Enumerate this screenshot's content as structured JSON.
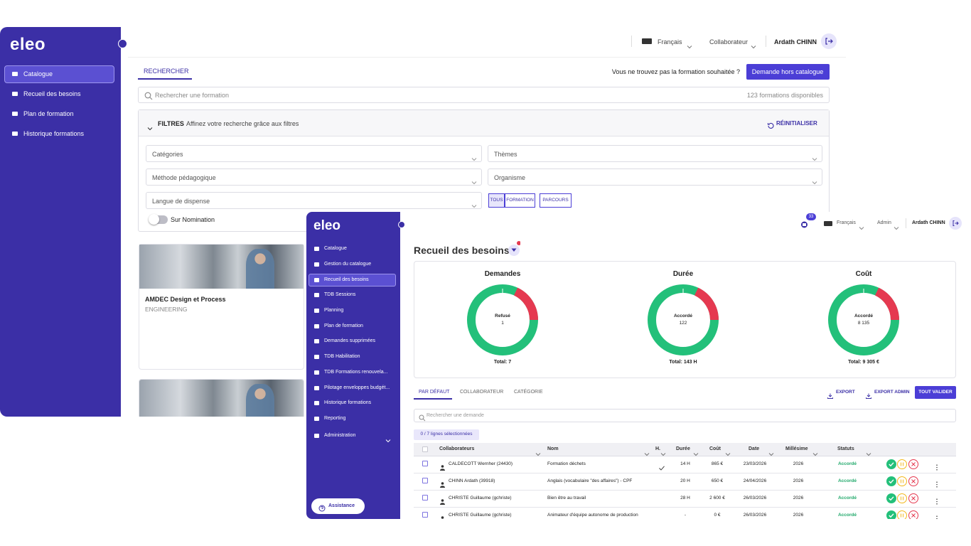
{
  "back_screen": {
    "logo": "eleo",
    "menu": [
      "Catalogue",
      "Recueil des besoins",
      "Plan de formation",
      "Historique formations"
    ],
    "header": {
      "language": "Français",
      "role": "Collaborateur",
      "user": "Ardath CHINN"
    },
    "tab": "RECHERCHER",
    "not_found_text": "Vous ne trouvez pas la formation souhaitée ?",
    "request_button": "Demande hors catalogue",
    "search_placeholder": "Rechercher une formation",
    "available_count": "123 formations disponibles",
    "filters": {
      "title": "FILTRES",
      "subtitle": "Affinez votre recherche grâce aux filtres",
      "reset": "RÉINITIALISER",
      "selects": [
        "Catégories",
        "Thèmes",
        "Méthode pédagogique",
        "Organisme",
        "Langue de dispense"
      ],
      "type_toggle": [
        "TOUS",
        "FORMATION",
        "PARCOURS"
      ],
      "nomination": "Sur Nomination"
    },
    "cards": [
      {
        "title": "AMDEC Design et Process",
        "category": "ENGINEERING"
      }
    ]
  },
  "front_screen": {
    "logo": "eleo",
    "menu": [
      "Catalogue",
      "Gestion du catalogue",
      "Recueil des besoins",
      "TDB Sessions",
      "Planning",
      "Plan de formation",
      "Demandes supprimées",
      "TDB Habilitation",
      "TDB Formations renouvela...",
      "Pilotage enveloppes budgét...",
      "Historique formations",
      "Reporting",
      "Administration"
    ],
    "assistance": "Assistance",
    "header": {
      "notifications": "33",
      "language": "Français",
      "role": "Admin",
      "user": "Ardath CHINN"
    },
    "page_title": "Recueil des besoins",
    "stats": [
      {
        "title": "Demandes",
        "center_label": "Refusé",
        "center_value": "1",
        "total": "Total: 7"
      },
      {
        "title": "Durée",
        "center_label": "Accordé",
        "center_value": "122",
        "total": "Total: 143 H"
      },
      {
        "title": "Coût",
        "center_label": "Accordé",
        "center_value": "8 135",
        "total": "Total: 9 305 €"
      }
    ],
    "tabs": [
      "PAR DÉFAUT",
      "COLLABORATEUR",
      "CATÉGORIE"
    ],
    "export": "EXPORT",
    "export_admin": "EXPORT ADMIN",
    "validate_all": "TOUT VALIDER",
    "search_placeholder": "Rechercher une demande",
    "selection_chip": "0 / 7 lignes sélectionnées",
    "table": {
      "columns": [
        "Collaborateurs",
        "Nom",
        "H.",
        "Durée",
        "Coût",
        "Date",
        "Millésime",
        "Statuts"
      ],
      "rows": [
        {
          "collaborator": "CALDECOTT Wernher (24430)",
          "name": "Formation déchets",
          "h": true,
          "duration": "14 H",
          "cost": "865 €",
          "date": "23/03/2026",
          "year": "2026",
          "status": "Accordé"
        },
        {
          "collaborator": "CHINN Ardath (39918)",
          "name": "Anglais (vocabulaire \"des affaires\") - CPF",
          "h": false,
          "duration": "20 H",
          "cost": "650 €",
          "date": "24/04/2026",
          "year": "2026",
          "status": "Accordé"
        },
        {
          "collaborator": "CHRISTE Guillaume (gchriste)",
          "name": "Bien être au travail",
          "h": false,
          "duration": "28 H",
          "cost": "2 600 €",
          "date": "26/03/2026",
          "year": "2026",
          "status": "Accordé"
        },
        {
          "collaborator": "CHRISTE Guillaume (gchriste)",
          "name": "Animateur d'équipe autonome de production",
          "h": false,
          "duration": "-",
          "cost": "0 €",
          "date": "26/03/2026",
          "year": "2026",
          "status": "Accordé"
        }
      ]
    }
  }
}
